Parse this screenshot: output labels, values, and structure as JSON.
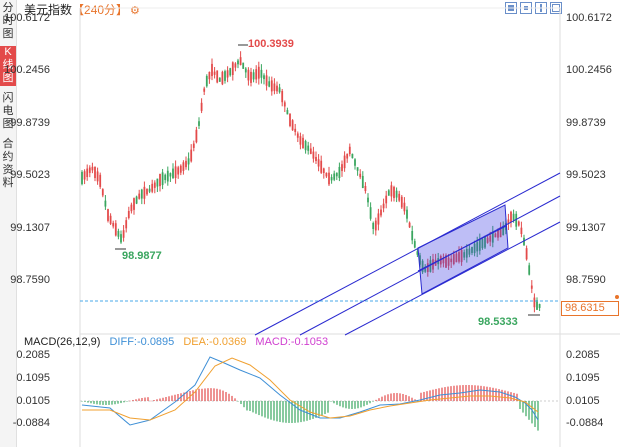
{
  "sidebar": {
    "tabs": [
      {
        "label": "分时图",
        "active": false
      },
      {
        "label": "K线图",
        "active": true
      },
      {
        "label": "闪电图",
        "active": false
      },
      {
        "label": "合约资料",
        "active": false
      }
    ]
  },
  "header": {
    "title": "美元指数",
    "period": "【240分】",
    "settings_icon": "gear-icon"
  },
  "toolbar": {
    "icons": [
      "zoom-in-icon",
      "zoom-out-icon",
      "move-icon",
      "fullscreen-icon"
    ]
  },
  "price_axis": {
    "left_labels": [
      "100.6172",
      "100.2456",
      "99.8739",
      "99.5023",
      "99.1307",
      "98.7590"
    ],
    "right_labels": [
      "100.6172",
      "100.2456",
      "99.8739",
      "99.5023",
      "99.1307",
      "98.7590"
    ]
  },
  "annotations": {
    "high": "100.3939",
    "low_left": "98.9877",
    "low_right": "98.5333"
  },
  "current_price": "98.6315",
  "macd": {
    "label": "MACD(26,12,9)",
    "diff": "DIFF:-0.0895",
    "dea": "DEA:-0.0369",
    "macd": "MACD:-0.1053",
    "axis_labels": [
      "0.2085",
      "0.1095",
      "0.0105",
      "-0.0884"
    ]
  },
  "colors": {
    "up": "#e34a4a",
    "down": "#3aa65f",
    "diff": "#3e8fd6",
    "dea": "#f0a030",
    "channel": "#2a2ad0",
    "current_price": "#e8742b",
    "active_tab": "#e34a4a"
  }
}
